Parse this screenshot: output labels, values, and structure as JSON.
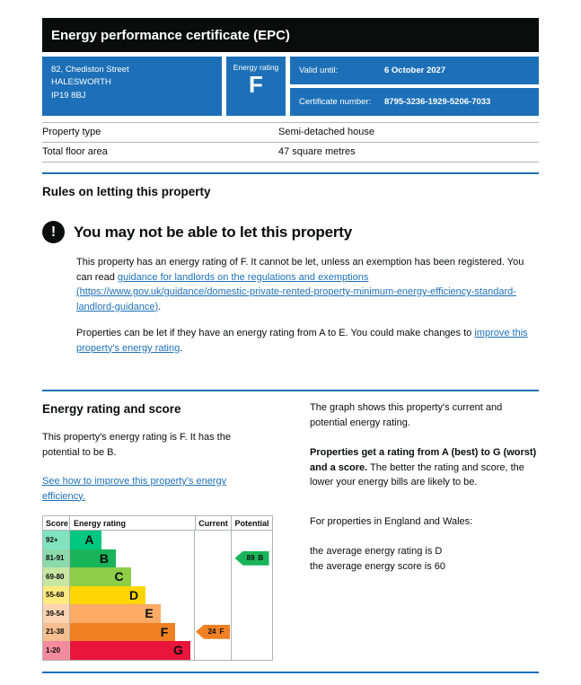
{
  "header": {
    "title": "Energy performance certificate (EPC)"
  },
  "summary": {
    "address_lines": [
      "82, Chediston Street",
      "HALESWORTH",
      "IP19 8BJ"
    ],
    "energy_rating_label": "Energy rating",
    "energy_rating": "F",
    "valid_until_label": "Valid until:",
    "valid_until": "6 October 2027",
    "certificate_number_label": "Certificate number:",
    "certificate_number": "8795-3236-1929-5206-7033"
  },
  "property_table": {
    "rows": [
      {
        "label": "Property type",
        "value": "Semi-detached house"
      },
      {
        "label": "Total floor area",
        "value": "47 square metres"
      }
    ]
  },
  "rules_section": {
    "heading": "Rules on letting this property",
    "warning_heading": "You may not be able to let this property",
    "para1_before": "This property has an energy rating of F. It cannot be let, unless an exemption has been registered. You can read ",
    "para1_link": "guidance for landlords on the regulations and exemptions (https://www.gov.uk/guidance/domestic-private-rented-property-minimum-energy-efficiency-standard-landlord-guidance)",
    "para1_after": ".",
    "para2_before": "Properties can be let if they have an energy rating from A to E. You could make changes to ",
    "para2_link": "improve this property's energy rating",
    "para2_after": "."
  },
  "rating_section": {
    "heading": "Energy rating and score",
    "intro": "This property's energy rating is F. It has the potential to be B.",
    "improve_link": "See how to improve this property's energy efficiency.",
    "right_para1": "The graph shows this property's current and potential energy rating.",
    "right_para2_bold": "Properties get a rating from A (best) to G (worst) and a score.",
    "right_para2_rest": " The better the rating and score, the lower your energy bills are likely to be.",
    "right_para3": "For properties in England and Wales:",
    "right_para4_line1": "the average energy rating is D",
    "right_para4_line2": "the average energy score is 60"
  },
  "chart_data": {
    "type": "epc-rating-bar",
    "columns": [
      "Score",
      "Energy rating",
      "Current",
      "Potential"
    ],
    "bands": [
      {
        "score": "92+",
        "letter": "A",
        "color": "#00c781",
        "score_bg": "#7fe3c0",
        "width_pct": 25
      },
      {
        "score": "81-91",
        "letter": "B",
        "color": "#19b459",
        "score_bg": "#8cd9ac",
        "width_pct": 37
      },
      {
        "score": "69-80",
        "letter": "C",
        "color": "#8dce46",
        "score_bg": "#c6e6a2",
        "width_pct": 49
      },
      {
        "score": "55-68",
        "letter": "D",
        "color": "#ffd500",
        "score_bg": "#ffea80",
        "width_pct": 61
      },
      {
        "score": "39-54",
        "letter": "E",
        "color": "#fcaa65",
        "score_bg": "#fdd4b2",
        "width_pct": 73
      },
      {
        "score": "21-38",
        "letter": "F",
        "color": "#ef8023",
        "score_bg": "#f7bf91",
        "width_pct": 85
      },
      {
        "score": "1-20",
        "letter": "G",
        "color": "#e9153b",
        "score_bg": "#f48a9d",
        "width_pct": 97
      }
    ],
    "current": {
      "score": 24,
      "letter": "F",
      "band_index": 5,
      "color": "#ef8023"
    },
    "potential": {
      "score": 89,
      "letter": "B",
      "band_index": 1,
      "color": "#19b459"
    }
  },
  "colors": {
    "brand_blue": "#1d70b8",
    "text_black": "#0b0c0c",
    "border_grey": "#b1b4b6"
  }
}
